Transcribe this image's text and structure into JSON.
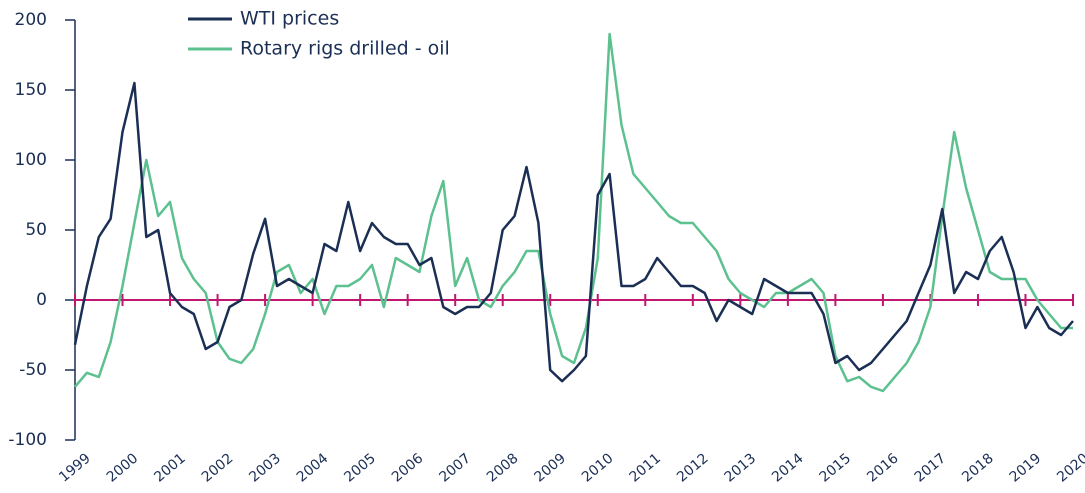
{
  "chart_data": {
    "type": "line",
    "x": [
      1999,
      1999.25,
      1999.5,
      1999.75,
      2000,
      2000.25,
      2000.5,
      2000.75,
      2001,
      2001.25,
      2001.5,
      2001.75,
      2002,
      2002.25,
      2002.5,
      2002.75,
      2003,
      2003.25,
      2003.5,
      2003.75,
      2004,
      2004.25,
      2004.5,
      2004.75,
      2005,
      2005.25,
      2005.5,
      2005.75,
      2006,
      2006.25,
      2006.5,
      2006.75,
      2007,
      2007.25,
      2007.5,
      2007.75,
      2008,
      2008.25,
      2008.5,
      2008.75,
      2009,
      2009.25,
      2009.5,
      2009.75,
      2010,
      2010.25,
      2010.5,
      2010.75,
      2011,
      2011.25,
      2011.5,
      2011.75,
      2012,
      2012.25,
      2012.5,
      2012.75,
      2013,
      2013.25,
      2013.5,
      2013.75,
      2014,
      2014.25,
      2014.5,
      2014.75,
      2015,
      2015.25,
      2015.5,
      2015.75,
      2016,
      2016.25,
      2016.5,
      2016.75,
      2017,
      2017.25,
      2017.5,
      2017.75,
      2018,
      2018.25,
      2018.5,
      2018.75,
      2019,
      2019.25,
      2019.5,
      2019.75,
      2020
    ],
    "series": [
      {
        "name": "WTI prices",
        "color": "#1b2f55",
        "values": [
          -32,
          10,
          45,
          58,
          120,
          155,
          45,
          50,
          5,
          -5,
          -10,
          -35,
          -30,
          -5,
          0,
          33,
          58,
          10,
          15,
          10,
          5,
          40,
          35,
          70,
          35,
          55,
          45,
          40,
          40,
          25,
          30,
          -5,
          -10,
          -5,
          -5,
          5,
          50,
          60,
          95,
          55,
          -50,
          -58,
          -50,
          -40,
          75,
          90,
          10,
          10,
          15,
          30,
          20,
          10,
          10,
          5,
          -15,
          0,
          -5,
          -10,
          15,
          10,
          5,
          5,
          5,
          -10,
          -45,
          -40,
          -50,
          -45,
          -35,
          -25,
          -15,
          5,
          25,
          65,
          5,
          20,
          15,
          35,
          45,
          20,
          -20,
          -5,
          -20,
          -25,
          -15
        ]
      },
      {
        "name": "Rotary rigs drilled - oil",
        "color": "#5cc08f",
        "values": [
          -62,
          -52,
          -55,
          -30,
          10,
          55,
          100,
          60,
          70,
          30,
          15,
          5,
          -30,
          -42,
          -45,
          -35,
          -10,
          20,
          25,
          5,
          15,
          -10,
          10,
          10,
          15,
          25,
          -5,
          30,
          25,
          20,
          60,
          85,
          10,
          30,
          0,
          -5,
          10,
          20,
          35,
          35,
          -10,
          -40,
          -45,
          -20,
          30,
          190,
          125,
          90,
          80,
          70,
          60,
          55,
          55,
          45,
          35,
          15,
          5,
          0,
          -5,
          5,
          5,
          10,
          15,
          5,
          -40,
          -58,
          -55,
          -62,
          -65,
          -55,
          -45,
          -30,
          -5,
          60,
          120,
          80,
          50,
          20,
          15,
          15,
          15,
          0,
          -10,
          -20,
          -20
        ]
      }
    ],
    "xlim": [
      1999,
      2020
    ],
    "xticks": [
      1999,
      2000,
      2001,
      2002,
      2003,
      2004,
      2005,
      2006,
      2007,
      2008,
      2009,
      2010,
      2011,
      2012,
      2013,
      2014,
      2015,
      2016,
      2017,
      2018,
      2019,
      2020
    ],
    "ylim": [
      -100,
      200
    ],
    "yticks": [
      -100,
      -50,
      0,
      50,
      100,
      150,
      200
    ],
    "zero_line_color": "#c0166e",
    "legend": "top"
  }
}
